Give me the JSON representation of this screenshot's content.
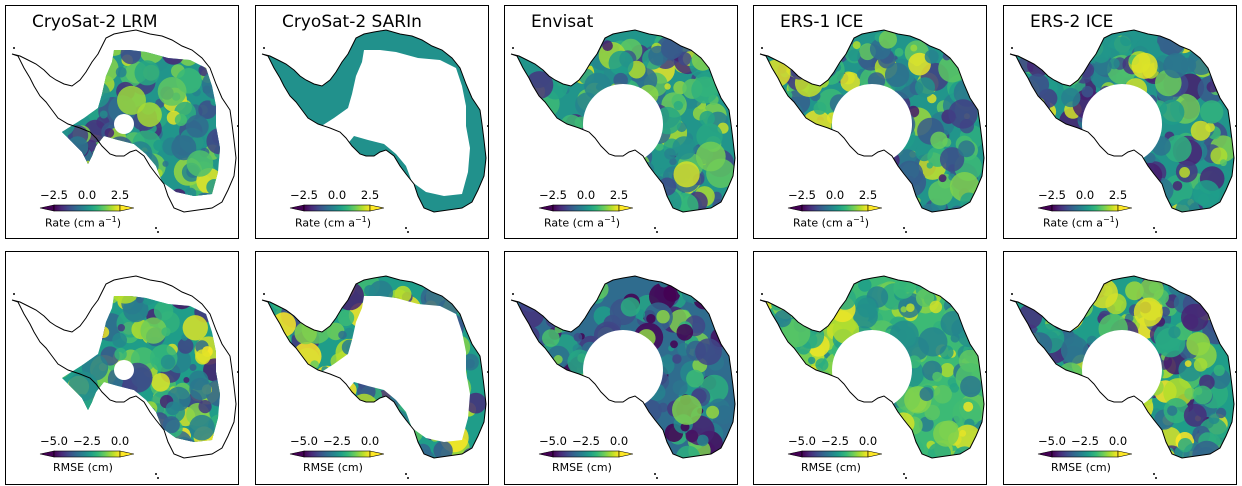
{
  "panels": [
    {
      "title": "CryoSat-2 LRM",
      "row": 0,
      "col": 0,
      "coverage": "interior",
      "hole": "small",
      "seed": 11,
      "palette": "rate"
    },
    {
      "title": "CryoSat-2 SARIn",
      "row": 0,
      "col": 1,
      "coverage": "margin",
      "hole": "none",
      "seed": 12,
      "palette": "flat"
    },
    {
      "title": "Envisat",
      "row": 0,
      "col": 2,
      "coverage": "full",
      "hole": "large",
      "seed": 13,
      "palette": "rate"
    },
    {
      "title": "ERS-1 ICE",
      "row": 0,
      "col": 3,
      "coverage": "full",
      "hole": "large",
      "seed": 14,
      "palette": "rate"
    },
    {
      "title": "ERS-2 ICE",
      "row": 0,
      "col": 4,
      "coverage": "full",
      "hole": "large",
      "seed": 15,
      "palette": "rate"
    },
    {
      "title": "",
      "row": 1,
      "col": 0,
      "coverage": "interior",
      "hole": "small",
      "seed": 21,
      "palette": "rmse"
    },
    {
      "title": "",
      "row": 1,
      "col": 1,
      "coverage": "margin",
      "hole": "none",
      "seed": 22,
      "palette": "rmse"
    },
    {
      "title": "",
      "row": 1,
      "col": 2,
      "coverage": "full",
      "hole": "large",
      "seed": 23,
      "palette": "rmsedark"
    },
    {
      "title": "",
      "row": 1,
      "col": 3,
      "coverage": "full",
      "hole": "large",
      "seed": 24,
      "palette": "rmsebright"
    },
    {
      "title": "",
      "row": 1,
      "col": 4,
      "coverage": "full",
      "hole": "large",
      "seed": 25,
      "palette": "rmse"
    }
  ],
  "colorbars": {
    "rate": {
      "ticks": [
        "−2.5",
        "0.0",
        "2.5"
      ],
      "label": "Rate (cm a",
      "label_sup": "−1",
      "label_end": ")",
      "colormap": "viridis",
      "extend": "both"
    },
    "rmse": {
      "ticks": [
        "−5.0",
        "−2.5",
        "0.0"
      ],
      "label": "RMSE (cm)",
      "colormap": "viridis",
      "extend": "both"
    }
  },
  "colors": {
    "ice_fill_flat": "#21918c",
    "coast": "#000000",
    "frame": "#000000"
  }
}
